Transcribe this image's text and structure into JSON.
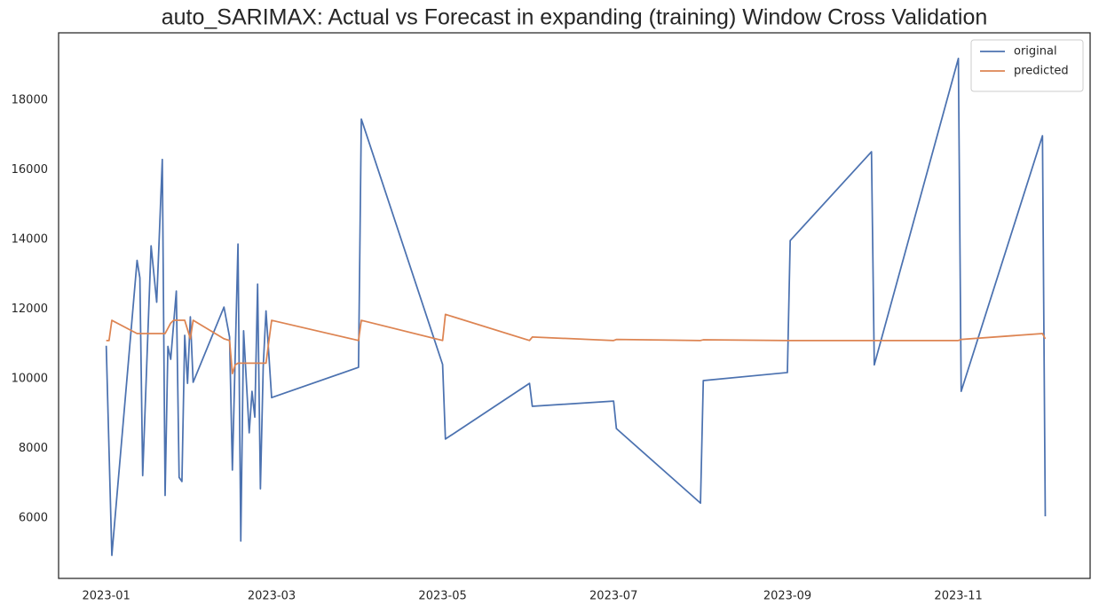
{
  "chart_data": {
    "type": "line",
    "title": "auto_SARIMAX: Actual vs Forecast in expanding (training) Window Cross Validation",
    "xlim": [
      "2022-12-15",
      "2023-12-18"
    ],
    "ylim": [
      4268,
      19936
    ],
    "xticks": [
      {
        "value": "2023-01-01",
        "label": "2023-01"
      },
      {
        "value": "2023-03-01",
        "label": "2023-03"
      },
      {
        "value": "2023-05-01",
        "label": "2023-05"
      },
      {
        "value": "2023-07-01",
        "label": "2023-07"
      },
      {
        "value": "2023-09-01",
        "label": "2023-09"
      },
      {
        "value": "2023-11-01",
        "label": "2023-11"
      }
    ],
    "yticks": [
      6000,
      8000,
      10000,
      12000,
      14000,
      16000,
      18000
    ],
    "grid": false,
    "legend": "upper right",
    "series": [
      {
        "name": "original",
        "color": "#4c72b0",
        "x": [
          "2023-01-01",
          "2023-01-03",
          "2023-01-12",
          "2023-01-13",
          "2023-01-14",
          "2023-01-17",
          "2023-01-19",
          "2023-01-21",
          "2023-01-22",
          "2023-01-23",
          "2023-01-24",
          "2023-01-26",
          "2023-01-27",
          "2023-01-28",
          "2023-01-29",
          "2023-01-30",
          "2023-01-31",
          "2023-02-01",
          "2023-02-12",
          "2023-02-14",
          "2023-02-15",
          "2023-02-17",
          "2023-02-18",
          "2023-02-19",
          "2023-02-21",
          "2023-02-22",
          "2023-02-23",
          "2023-02-24",
          "2023-02-25",
          "2023-02-26",
          "2023-02-27",
          "2023-03-01",
          "2023-04-01",
          "2023-04-02",
          "2023-05-01",
          "2023-05-02",
          "2023-06-01",
          "2023-06-02",
          "2023-07-01",
          "2023-07-02",
          "2023-08-01",
          "2023-08-02",
          "2023-09-01",
          "2023-09-02",
          "2023-10-01",
          "2023-10-02",
          "2023-11-01",
          "2023-11-02",
          "2023-12-01",
          "2023-12-02"
        ],
        "values": [
          10950,
          4930,
          13400,
          12900,
          7220,
          13820,
          12200,
          16300,
          6650,
          10930,
          10560,
          12520,
          7170,
          7050,
          11250,
          9870,
          11780,
          9900,
          12060,
          11200,
          7380,
          13870,
          5340,
          11380,
          8450,
          9640,
          8900,
          12720,
          6840,
          10350,
          11950,
          9460,
          10330,
          17460,
          10410,
          8270,
          9870,
          9210,
          9360,
          8570,
          6430,
          9950,
          10180,
          13970,
          16520,
          10400,
          19200,
          9640,
          16980,
          6050
        ]
      },
      {
        "name": "predicted",
        "color": "#dd8452",
        "x": [
          "2023-01-01",
          "2023-01-02",
          "2023-01-03",
          "2023-01-12",
          "2023-01-22",
          "2023-01-24",
          "2023-01-25",
          "2023-01-29",
          "2023-01-31",
          "2023-02-01",
          "2023-02-12",
          "2023-02-14",
          "2023-02-15",
          "2023-02-16",
          "2023-02-17",
          "2023-02-27",
          "2023-03-01",
          "2023-04-01",
          "2023-04-02",
          "2023-05-01",
          "2023-05-02",
          "2023-06-01",
          "2023-06-02",
          "2023-07-01",
          "2023-07-02",
          "2023-08-01",
          "2023-08-02",
          "2023-09-01",
          "2023-10-01",
          "2023-11-01",
          "2023-11-02",
          "2023-12-01",
          "2023-12-02"
        ],
        "values": [
          11100,
          11100,
          11680,
          11300,
          11300,
          11600,
          11680,
          11680,
          11150,
          11680,
          11150,
          11100,
          10150,
          10400,
          10450,
          10450,
          11680,
          11100,
          11680,
          11100,
          11850,
          11100,
          11200,
          11100,
          11130,
          11100,
          11120,
          11100,
          11100,
          11100,
          11130,
          11300,
          11150
        ]
      }
    ]
  }
}
